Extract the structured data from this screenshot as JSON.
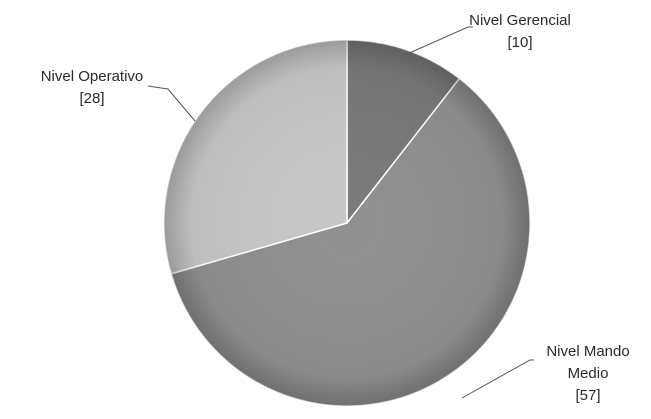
{
  "chart_data": {
    "type": "pie",
    "title": "",
    "slices": [
      {
        "name": "Nivel Gerencial",
        "name_lines": [
          "Nivel Gerencial"
        ],
        "value": 10,
        "value_label": "[10]",
        "color": "#797979"
      },
      {
        "name": "Nivel Mando Medio",
        "name_lines": [
          "Nivel Mando",
          "Medio"
        ],
        "value": 57,
        "value_label": "[57]",
        "color": "#8f8f8f"
      },
      {
        "name": "Nivel Operativo",
        "name_lines": [
          "Nivel Operativo"
        ],
        "value": 28,
        "value_label": "[28]",
        "color": "#c6c6c6"
      }
    ],
    "start_angle": "top (12 o'clock), clockwise",
    "legend": "none",
    "data_labels": "outside with leader lines"
  }
}
